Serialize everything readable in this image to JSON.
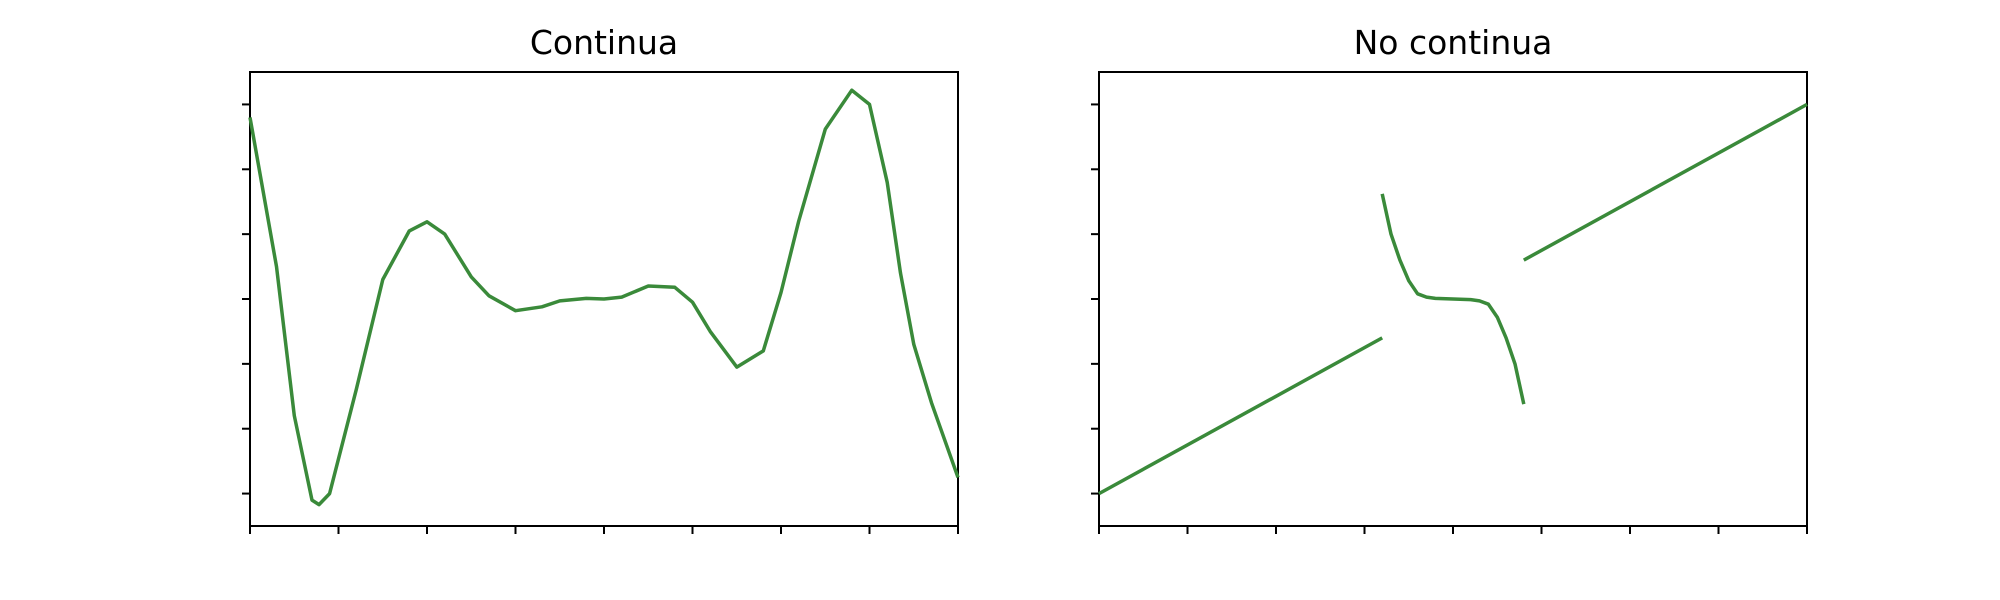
{
  "chart_data": [
    {
      "type": "line",
      "title": "Continua",
      "xlabel": "",
      "ylabel": "",
      "xlim": [
        -4,
        4
      ],
      "ylim": [
        -3.5,
        3.5
      ],
      "xticks": [
        -4,
        -3,
        -2,
        -1,
        0,
        1,
        2,
        3,
        4
      ],
      "yticks": [
        -3,
        -2,
        -1,
        0,
        1,
        2,
        3
      ],
      "tick_labels_visible": false,
      "grid": false,
      "color": "#3a8a3a",
      "series": [
        {
          "segments": [
            {
              "x": [
                -4,
                -3.7,
                -3.5,
                -3.3,
                -3.22,
                -3.1,
                -2.8,
                -2.5,
                -2.2,
                -2.0,
                -1.8,
                -1.5,
                -1.3,
                -1.0,
                -0.7,
                -0.5,
                -0.2,
                0,
                0.2,
                0.5,
                0.8,
                1.0,
                1.2,
                1.5,
                1.8,
                2.0,
                2.2,
                2.5,
                2.8,
                3.0,
                3.2,
                3.35,
                3.5,
                3.7,
                4.0
              ],
              "y": [
                2.8,
                0.5,
                -1.8,
                -3.1,
                -3.17,
                -3.0,
                -1.4,
                0.3,
                1.05,
                1.19,
                1.0,
                0.34,
                0.05,
                -0.18,
                -0.12,
                -0.03,
                0.01,
                0,
                0.03,
                0.2,
                0.18,
                -0.05,
                -0.5,
                -1.05,
                -0.8,
                0.1,
                1.2,
                2.62,
                3.22,
                3.0,
                1.8,
                0.4,
                -0.7,
                -1.6,
                -2.75
              ]
            }
          ]
        }
      ]
    },
    {
      "type": "line",
      "title": "No continua",
      "xlabel": "",
      "ylabel": "",
      "xlim": [
        -4,
        4
      ],
      "ylim": [
        -3.5,
        3.5
      ],
      "xticks": [
        -4,
        -3,
        -2,
        -1,
        0,
        1,
        2,
        3,
        4
      ],
      "yticks": [
        -3,
        -2,
        -1,
        0,
        1,
        2,
        3
      ],
      "tick_labels_visible": false,
      "grid": false,
      "color": "#3a8a3a",
      "series": [
        {
          "segments": [
            {
              "x": [
                -4,
                -0.8
              ],
              "y": [
                -3,
                -0.6
              ]
            },
            {
              "x": [
                -0.8,
                -0.7,
                -0.6,
                -0.5,
                -0.4,
                -0.3,
                -0.2,
                0,
                0.2,
                0.3,
                0.4,
                0.5,
                0.6,
                0.7,
                0.8
              ],
              "y": [
                1.62,
                1.0,
                0.6,
                0.28,
                0.08,
                0.03,
                0.01,
                0,
                -0.01,
                -0.03,
                -0.08,
                -0.28,
                -0.6,
                -1.0,
                -1.62
              ]
            },
            {
              "x": [
                0.8,
                4
              ],
              "y": [
                0.6,
                3
              ]
            }
          ]
        }
      ]
    }
  ]
}
